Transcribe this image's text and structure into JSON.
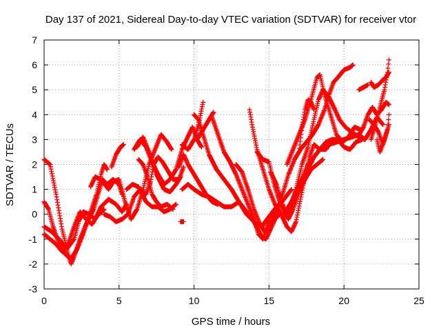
{
  "chart_data": {
    "type": "scatter",
    "title": "Day 137 of 2021, Sidereal Day-to-day VTEC variation (SDTVAR) for receiver vtor",
    "xlabel": "GPS time / hours",
    "ylabel": "SDTVAR / TECUs",
    "xlim": [
      0,
      25
    ],
    "ylim": [
      -3,
      7
    ],
    "xticks": [
      0,
      5,
      10,
      15,
      20,
      25
    ],
    "yticks": [
      -3,
      -2,
      -1,
      0,
      1,
      2,
      3,
      4,
      5,
      6,
      7
    ],
    "grid": true,
    "marker": "plus",
    "color": "#ff0000",
    "tracks": [
      [
        [
          0,
          2.2
        ],
        [
          0.4,
          2.0
        ],
        [
          0.8,
          0.8
        ],
        [
          1.2,
          -0.6
        ],
        [
          1.6,
          -1.6
        ],
        [
          1.8,
          -2.0
        ],
        [
          2.0,
          -1.7
        ],
        [
          2.4,
          -1.0
        ],
        [
          2.8,
          -0.4
        ],
        [
          3.3,
          0.2
        ],
        [
          3.6,
          0.8
        ],
        [
          3.9,
          1.4
        ],
        [
          4.2,
          1.2
        ],
        [
          4.6,
          1.4
        ],
        [
          5.0,
          1.2
        ],
        [
          5.2,
          0.8
        ]
      ],
      [
        [
          0.0,
          0.5
        ],
        [
          0.3,
          0.2
        ],
        [
          0.6,
          -0.5
        ],
        [
          1.0,
          -1.2
        ],
        [
          1.4,
          -1.6
        ],
        [
          1.8,
          -1.8
        ],
        [
          2.2,
          -1.4
        ],
        [
          2.6,
          -0.8
        ],
        [
          3.0,
          -0.1
        ],
        [
          3.5,
          0.8
        ],
        [
          3.8,
          1.6
        ],
        [
          4.0,
          2.0
        ],
        [
          4.2,
          1.8
        ]
      ],
      [
        [
          0.0,
          -0.5
        ],
        [
          0.5,
          -0.7
        ],
        [
          1.0,
          -1.0
        ],
        [
          1.5,
          -1.4
        ],
        [
          2.0,
          -1.0
        ],
        [
          2.3,
          -0.3
        ],
        [
          2.6,
          0.1
        ],
        [
          3.0,
          0.0
        ],
        [
          3.4,
          -0.2
        ],
        [
          3.8,
          0.3
        ],
        [
          4.3,
          0.6
        ],
        [
          4.8,
          0.4
        ],
        [
          5.2,
          0.1
        ],
        [
          5.5,
          0.4
        ]
      ],
      [
        [
          0.0,
          -0.8
        ],
        [
          0.4,
          -1.0
        ],
        [
          0.8,
          -1.2
        ],
        [
          1.2,
          -1.5
        ],
        [
          1.6,
          -1.2
        ],
        [
          2.0,
          -0.5
        ],
        [
          2.4,
          0.1
        ],
        [
          2.8,
          -0.2
        ],
        [
          3.2,
          -0.4
        ],
        [
          3.5,
          -0.1
        ],
        [
          4.0,
          0.2
        ]
      ],
      [
        [
          3.1,
          1.1
        ],
        [
          3.4,
          1.5
        ],
        [
          3.8,
          1.4
        ],
        [
          4.3,
          1.0
        ],
        [
          4.6,
          1.3
        ],
        [
          5.0,
          1.4
        ],
        [
          5.4,
          0.5
        ],
        [
          5.8,
          -0.2
        ],
        [
          6.2,
          0.2
        ],
        [
          6.6,
          1.0
        ],
        [
          7.0,
          2.0
        ],
        [
          7.4,
          2.6
        ],
        [
          7.8,
          3.2
        ],
        [
          8.2,
          2.9
        ],
        [
          8.5,
          2.6
        ]
      ],
      [
        [
          4.5,
          1.9
        ],
        [
          4.8,
          2.4
        ],
        [
          5.1,
          2.7
        ],
        [
          5.3,
          2.8
        ]
      ],
      [
        [
          4.0,
          0.0
        ],
        [
          4.4,
          -0.1
        ],
        [
          4.8,
          -0.3
        ],
        [
          5.2,
          -0.2
        ],
        [
          5.6,
          0.0
        ],
        [
          6.0,
          0.7
        ],
        [
          6.4,
          1.0
        ],
        [
          6.8,
          0.8
        ],
        [
          7.1,
          1.3
        ],
        [
          7.3,
          2.0
        ],
        [
          7.6,
          2.3
        ],
        [
          7.9,
          2.1
        ],
        [
          8.3,
          1.7
        ],
        [
          8.6,
          1.4
        ],
        [
          9.0,
          1.4
        ],
        [
          9.3,
          1.9
        ]
      ],
      [
        [
          6.0,
          2.6
        ],
        [
          6.4,
          3.0
        ],
        [
          6.8,
          2.7
        ],
        [
          7.2,
          2.1
        ],
        [
          7.6,
          1.6
        ],
        [
          8.0,
          1.2
        ],
        [
          8.4,
          1.4
        ],
        [
          8.8,
          1.8
        ],
        [
          9.2,
          2.6
        ],
        [
          9.5,
          3.0
        ],
        [
          9.9,
          3.5
        ],
        [
          10.2,
          3.0
        ],
        [
          10.5,
          2.7
        ]
      ],
      [
        [
          6.2,
          2.7
        ],
        [
          6.6,
          3.1
        ],
        [
          7.0,
          2.5
        ],
        [
          7.5,
          1.6
        ],
        [
          8.0,
          1.0
        ],
        [
          8.4,
          0.9
        ],
        [
          8.8,
          1.2
        ],
        [
          9.1,
          1.5
        ]
      ],
      [
        [
          6.3,
          2.2
        ],
        [
          6.6,
          2.0
        ],
        [
          6.9,
          1.5
        ],
        [
          7.2,
          0.8
        ],
        [
          7.5,
          0.5
        ],
        [
          7.8,
          0.3
        ],
        [
          8.2,
          0.4
        ],
        [
          8.6,
          0.2
        ]
      ],
      [
        [
          5.5,
          1.0
        ],
        [
          5.9,
          1.2
        ],
        [
          6.3,
          1.1
        ],
        [
          6.8,
          0.5
        ],
        [
          7.2,
          0.3
        ],
        [
          7.6,
          0.3
        ],
        [
          8.0,
          0.1
        ],
        [
          8.4,
          0.2
        ],
        [
          8.8,
          0.4
        ]
      ],
      [
        [
          9.1,
          -0.3
        ],
        [
          9.3,
          -0.3
        ]
      ],
      [
        [
          9.0,
          1.9
        ],
        [
          9.3,
          2.4
        ],
        [
          9.6,
          2.0
        ],
        [
          10.0,
          1.6
        ],
        [
          10.4,
          1.2
        ],
        [
          10.8,
          0.8
        ],
        [
          11.2,
          0.5
        ],
        [
          11.6,
          0.4
        ]
      ],
      [
        [
          9.2,
          2.8
        ],
        [
          9.6,
          2.6
        ],
        [
          10.0,
          3.0
        ],
        [
          10.3,
          3.6
        ],
        [
          10.6,
          4.5
        ]
      ],
      [
        [
          10.2,
          3.0
        ],
        [
          10.6,
          3.4
        ],
        [
          11.0,
          3.8
        ],
        [
          11.3,
          4.1
        ]
      ],
      [
        [
          9.2,
          1.0
        ],
        [
          9.6,
          1.2
        ],
        [
          10.0,
          1.0
        ],
        [
          10.5,
          0.8
        ],
        [
          11.0,
          0.7
        ],
        [
          11.5,
          0.5
        ],
        [
          12.0,
          0.3
        ],
        [
          12.5,
          0.3
        ],
        [
          13.0,
          0.5
        ],
        [
          13.5,
          0.1
        ],
        [
          14.0,
          -0.3
        ],
        [
          14.5,
          -0.5
        ],
        [
          15.0,
          -0.1
        ],
        [
          15.5,
          0.3
        ],
        [
          16.0,
          0.6
        ],
        [
          16.5,
          1.0
        ]
      ],
      [
        [
          10.0,
          4.0
        ],
        [
          10.3,
          3.8
        ],
        [
          10.6,
          3.2
        ],
        [
          11.0,
          2.4
        ],
        [
          11.5,
          1.8
        ],
        [
          12.0,
          1.4
        ],
        [
          12.5,
          1.0
        ],
        [
          13.0,
          0.5
        ],
        [
          13.5,
          0.0
        ],
        [
          14.0,
          -0.3
        ],
        [
          14.5,
          -0.9
        ],
        [
          14.8,
          -1.0
        ],
        [
          15.1,
          -0.6
        ],
        [
          15.4,
          -0.2
        ],
        [
          15.7,
          0.0
        ]
      ],
      [
        [
          11.2,
          3.9
        ],
        [
          11.6,
          3.2
        ],
        [
          12.0,
          2.5
        ],
        [
          12.4,
          2.1
        ],
        [
          12.8,
          1.6
        ],
        [
          13.2,
          1.0
        ],
        [
          13.6,
          0.4
        ],
        [
          14.0,
          -0.2
        ],
        [
          14.3,
          -0.8
        ],
        [
          14.6,
          -1.0
        ],
        [
          14.9,
          -0.4
        ],
        [
          15.2,
          0.0
        ]
      ],
      [
        [
          12.8,
          2.0
        ],
        [
          13.2,
          1.7
        ],
        [
          13.6,
          1.0
        ],
        [
          14.0,
          0.2
        ],
        [
          14.4,
          -0.4
        ],
        [
          14.7,
          -0.7
        ],
        [
          15.0,
          -0.6
        ],
        [
          15.3,
          -0.1
        ],
        [
          15.6,
          0.2
        ]
      ],
      [
        [
          13.7,
          4.2
        ],
        [
          13.9,
          3.5
        ],
        [
          14.2,
          2.6
        ],
        [
          14.6,
          1.8
        ],
        [
          15.0,
          1.0
        ],
        [
          15.4,
          0.4
        ],
        [
          15.8,
          0.0
        ],
        [
          16.2,
          -0.5
        ],
        [
          16.5,
          -0.7
        ],
        [
          16.8,
          -0.3
        ],
        [
          17.1,
          0.6
        ],
        [
          17.4,
          1.5
        ],
        [
          17.7,
          2.3
        ],
        [
          18.0,
          2.8
        ],
        [
          18.4,
          2.6
        ],
        [
          18.8,
          2.6
        ],
        [
          19.2,
          3.0
        ]
      ],
      [
        [
          14.2,
          2.5
        ],
        [
          14.6,
          2.2
        ],
        [
          15.0,
          2.1
        ],
        [
          15.3,
          1.3
        ],
        [
          15.6,
          0.7
        ],
        [
          16.0,
          0.1
        ],
        [
          16.3,
          -0.2
        ],
        [
          16.6,
          0.2
        ],
        [
          17.0,
          0.9
        ],
        [
          17.4,
          1.4
        ],
        [
          17.8,
          1.8
        ],
        [
          18.2,
          2.0
        ],
        [
          18.6,
          2.2
        ]
      ],
      [
        [
          15.1,
          1.7
        ],
        [
          15.5,
          1.2
        ],
        [
          15.9,
          0.4
        ],
        [
          16.2,
          0.0
        ],
        [
          16.5,
          0.2
        ],
        [
          16.8,
          0.7
        ],
        [
          17.2,
          1.4
        ],
        [
          17.6,
          2.0
        ],
        [
          18.0,
          2.3
        ],
        [
          18.4,
          2.6
        ],
        [
          18.8,
          2.9
        ],
        [
          19.2,
          3.0
        ],
        [
          19.6,
          3.0
        ],
        [
          20.0,
          2.7
        ],
        [
          20.4,
          2.6
        ],
        [
          20.8,
          2.9
        ],
        [
          21.2,
          3.0
        ]
      ],
      [
        [
          15.5,
          0.0
        ],
        [
          15.9,
          0.8
        ],
        [
          16.3,
          1.6
        ],
        [
          16.7,
          2.2
        ],
        [
          17.1,
          2.6
        ],
        [
          17.5,
          2.9
        ],
        [
          17.9,
          3.2
        ],
        [
          18.3,
          3.6
        ],
        [
          18.7,
          4.2
        ],
        [
          19.0,
          4.8
        ],
        [
          19.3,
          5.3
        ],
        [
          19.6,
          5.5
        ],
        [
          20.0,
          5.8
        ],
        [
          20.4,
          5.9
        ],
        [
          20.6,
          6.0
        ]
      ],
      [
        [
          16.2,
          2.0
        ],
        [
          16.6,
          2.6
        ],
        [
          17.0,
          3.2
        ],
        [
          17.4,
          3.8
        ],
        [
          17.8,
          4.6
        ],
        [
          18.2,
          5.5
        ],
        [
          18.4,
          5.6
        ],
        [
          18.7,
          4.8
        ],
        [
          19.1,
          4.0
        ],
        [
          19.5,
          3.2
        ],
        [
          19.9,
          2.9
        ],
        [
          20.3,
          3.1
        ],
        [
          20.7,
          3.5
        ],
        [
          21.1,
          3.4
        ]
      ],
      [
        [
          16.4,
          0.2
        ],
        [
          16.8,
          1.0
        ],
        [
          17.2,
          2.0
        ],
        [
          17.6,
          2.7
        ],
        [
          18.0,
          3.8
        ],
        [
          18.3,
          4.6
        ],
        [
          18.6,
          5.0
        ],
        [
          19.0,
          4.7
        ],
        [
          19.4,
          4.2
        ],
        [
          19.7,
          3.8
        ],
        [
          20.1,
          3.5
        ],
        [
          20.5,
          3.3
        ],
        [
          21.0,
          3.1
        ],
        [
          21.4,
          3.0
        ]
      ],
      [
        [
          16.0,
          0.0
        ],
        [
          16.5,
          0.5
        ],
        [
          17.0,
          1.2
        ],
        [
          17.5,
          1.7
        ],
        [
          18.0,
          2.3
        ],
        [
          18.5,
          2.7
        ],
        [
          19.0,
          2.8
        ],
        [
          19.5,
          2.9
        ],
        [
          20.0,
          3.0
        ],
        [
          20.5,
          3.1
        ],
        [
          21.0,
          3.2
        ],
        [
          21.4,
          3.0
        ],
        [
          21.8,
          3.4
        ],
        [
          22.2,
          3.9
        ],
        [
          22.6,
          3.6
        ]
      ],
      [
        [
          17.0,
          2.5
        ],
        [
          17.2,
          3.5
        ],
        [
          17.4,
          4.2
        ],
        [
          17.6,
          4.6
        ],
        [
          17.8,
          4.5
        ],
        [
          18.0,
          4.2
        ]
      ],
      [
        [
          21.0,
          3.2
        ],
        [
          21.3,
          3.5
        ],
        [
          21.6,
          4.0
        ],
        [
          21.9,
          4.3
        ],
        [
          22.2,
          4.0
        ],
        [
          22.5,
          4.2
        ],
        [
          22.8,
          4.5
        ],
        [
          23.0,
          4.4
        ]
      ],
      [
        [
          21.8,
          3.0
        ],
        [
          22.1,
          3.6
        ],
        [
          22.4,
          4.3
        ],
        [
          22.7,
          5.0
        ],
        [
          22.9,
          5.7
        ],
        [
          23.0,
          6.2
        ]
      ],
      [
        [
          21.8,
          5.3
        ],
        [
          22.0,
          5.1
        ],
        [
          22.3,
          5.2
        ],
        [
          22.6,
          5.4
        ],
        [
          22.8,
          5.5
        ],
        [
          23.0,
          5.7
        ]
      ],
      [
        [
          21.7,
          3.8
        ],
        [
          22.0,
          3.6
        ],
        [
          22.3,
          3.3
        ],
        [
          22.6,
          2.8
        ],
        [
          22.9,
          3.4
        ],
        [
          23.0,
          4.0
        ]
      ],
      [
        [
          22.2,
          3.0
        ],
        [
          22.4,
          2.5
        ],
        [
          22.7,
          3.0
        ],
        [
          23.0,
          3.6
        ]
      ],
      [
        [
          21.0,
          5.0
        ],
        [
          21.3,
          5.1
        ],
        [
          21.6,
          5.2
        ]
      ]
    ]
  }
}
